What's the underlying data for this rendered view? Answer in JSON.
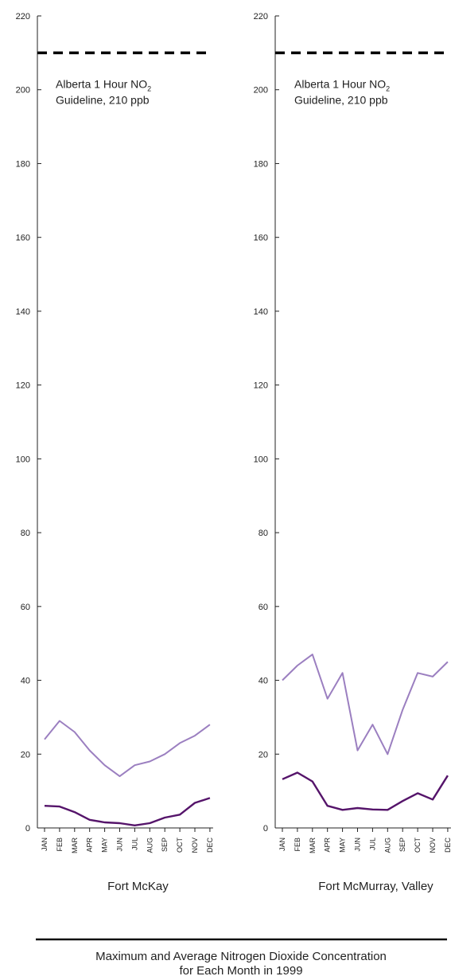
{
  "chart_data": [
    {
      "type": "line",
      "title": "Fort McKay",
      "xlabel": "",
      "ylabel": "",
      "ylim": [
        0,
        220
      ],
      "yticks": [
        0,
        20,
        40,
        60,
        80,
        100,
        120,
        140,
        160,
        180,
        200,
        220
      ],
      "categories": [
        "JAN",
        "FEB",
        "MAR",
        "APR",
        "MAY",
        "JUN",
        "JUL",
        "AUG",
        "SEP",
        "OCT",
        "NOV",
        "DEC"
      ],
      "series": [
        {
          "values": [
            24,
            29,
            26,
            21,
            17,
            14,
            17,
            18,
            20,
            23,
            25,
            28
          ],
          "color": "#9b7fc0"
        },
        {
          "values": [
            6,
            5.8,
            4.3,
            2.2,
            1.5,
            1.3,
            0.7,
            1.3,
            2.8,
            3.6,
            6.8,
            8.1
          ],
          "color": "#55146a"
        }
      ],
      "guideline": {
        "value": 210,
        "label_line1": "Alberta 1 Hour NO",
        "label_sub": "2",
        "label_line2": "Guideline, 210 ppb"
      },
      "grid": false
    },
    {
      "type": "line",
      "title": "Fort McMurray, Valley",
      "xlabel": "",
      "ylabel": "",
      "ylim": [
        0,
        220
      ],
      "yticks": [
        0,
        20,
        40,
        60,
        80,
        100,
        120,
        140,
        160,
        180,
        200,
        220
      ],
      "categories": [
        "JAN",
        "FEB",
        "MAR",
        "APR",
        "MAY",
        "JUN",
        "JUL",
        "AUG",
        "SEP",
        "OCT",
        "NOV",
        "DEC"
      ],
      "series": [
        {
          "values": [
            40,
            44,
            47,
            35,
            42,
            21,
            28,
            20,
            32,
            42,
            41,
            45
          ],
          "color": "#9b7fc0"
        },
        {
          "values": [
            13.2,
            15,
            12.6,
            6,
            4.9,
            5.4,
            5,
            4.9,
            7.3,
            9.4,
            7.7,
            14.2
          ],
          "color": "#55146a"
        }
      ],
      "guideline": {
        "value": 210,
        "label_line1": "Alberta 1 Hour NO",
        "label_sub": "2",
        "label_line2": "Guideline, 210 ppb"
      },
      "grid": false
    }
  ],
  "caption": {
    "line1": "Maximum and Average Nitrogen Dioxide Concentration",
    "line2": "for Each Month in 1999"
  }
}
